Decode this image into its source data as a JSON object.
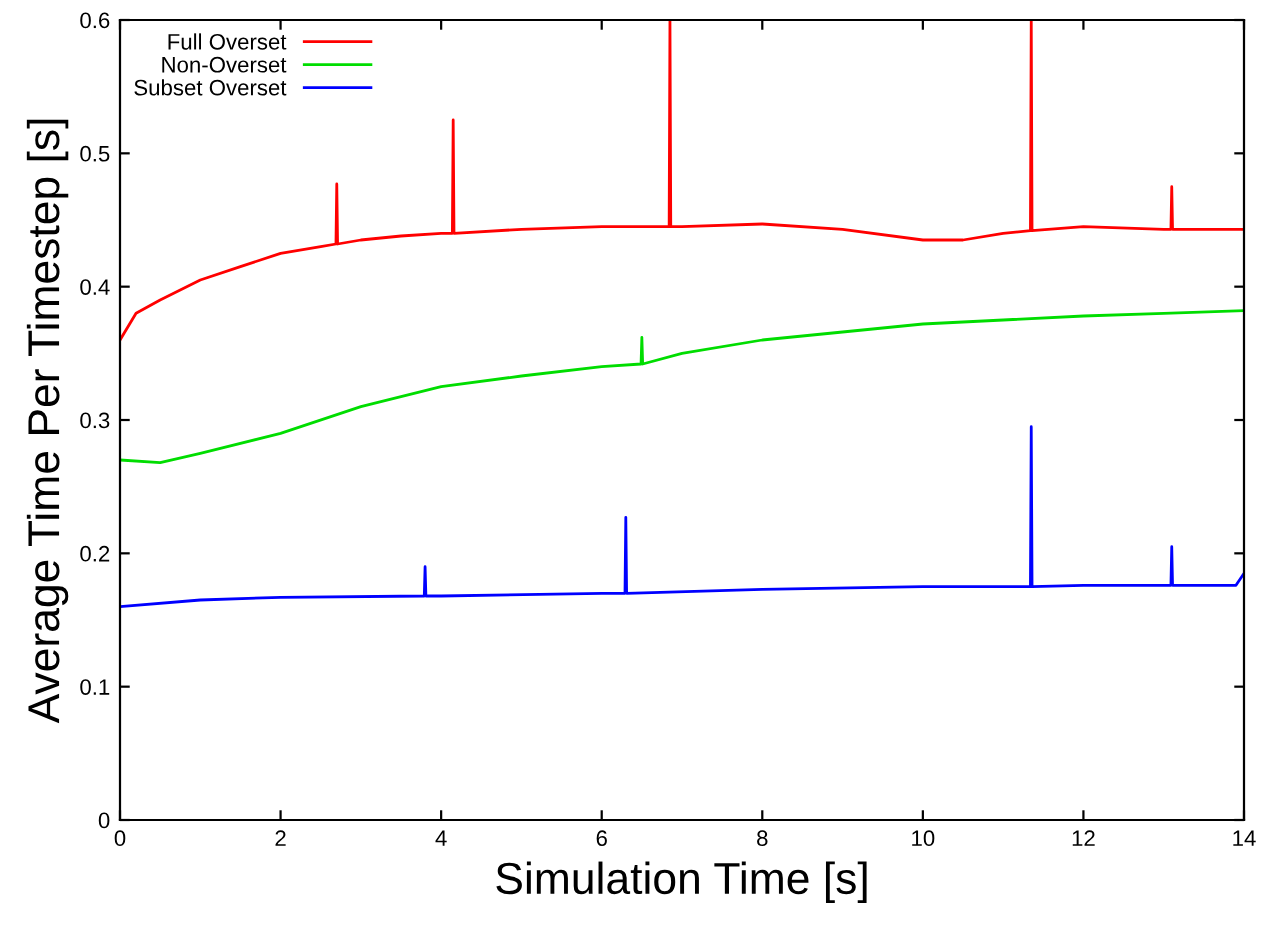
{
  "chart_data": {
    "type": "line",
    "xlabel": "Simulation Time [s]",
    "ylabel": "Average Time Per Timestep [s]",
    "xlim": [
      0,
      14
    ],
    "ylim": [
      0,
      0.6
    ],
    "xticks": [
      0,
      2,
      4,
      6,
      8,
      10,
      12,
      14
    ],
    "yticks": [
      0,
      0.1,
      0.2,
      0.3,
      0.4,
      0.5,
      0.6
    ],
    "grid": false,
    "legend": "top left",
    "marker": "none",
    "line_style": "solid",
    "series": [
      {
        "name": "Full Overset",
        "color": "#ff0000",
        "x": [
          0,
          0.2,
          0.5,
          1,
          1.5,
          2,
          2.5,
          2.69,
          2.7,
          2.71,
          3,
          3.5,
          4,
          4.14,
          4.15,
          4.16,
          5,
          6,
          6.84,
          6.85,
          6.86,
          7,
          8,
          9,
          10,
          10.5,
          11,
          11.34,
          11.35,
          11.36,
          12,
          13,
          13.09,
          13.1,
          13.11,
          14
        ],
        "values": [
          0.36,
          0.38,
          0.39,
          0.405,
          0.415,
          0.425,
          0.43,
          0.432,
          0.477,
          0.432,
          0.435,
          0.438,
          0.44,
          0.44,
          0.525,
          0.44,
          0.443,
          0.445,
          0.445,
          0.6,
          0.445,
          0.445,
          0.447,
          0.443,
          0.435,
          0.435,
          0.44,
          0.442,
          0.6,
          0.442,
          0.445,
          0.443,
          0.443,
          0.475,
          0.443,
          0.443
        ]
      },
      {
        "name": "Non-Overset",
        "color": "#00dd00",
        "x": [
          0,
          0.5,
          1,
          2,
          3,
          4,
          5,
          6,
          6.49,
          6.5,
          6.51,
          7,
          8,
          9,
          10,
          11,
          12,
          13,
          14
        ],
        "values": [
          0.27,
          0.268,
          0.275,
          0.29,
          0.31,
          0.325,
          0.333,
          0.34,
          0.342,
          0.362,
          0.342,
          0.35,
          0.36,
          0.366,
          0.372,
          0.375,
          0.378,
          0.38,
          0.382
        ]
      },
      {
        "name": "Subset Overset",
        "color": "#0000ff",
        "x": [
          0,
          1,
          2,
          3.79,
          3.8,
          3.81,
          4,
          6,
          6.29,
          6.3,
          6.31,
          8,
          10,
          11.34,
          11.35,
          11.36,
          12,
          13.09,
          13.1,
          13.11,
          13.9,
          14
        ],
        "values": [
          0.16,
          0.165,
          0.167,
          0.168,
          0.19,
          0.168,
          0.168,
          0.17,
          0.17,
          0.227,
          0.17,
          0.173,
          0.175,
          0.175,
          0.295,
          0.175,
          0.176,
          0.176,
          0.205,
          0.176,
          0.176,
          0.185
        ]
      }
    ]
  }
}
